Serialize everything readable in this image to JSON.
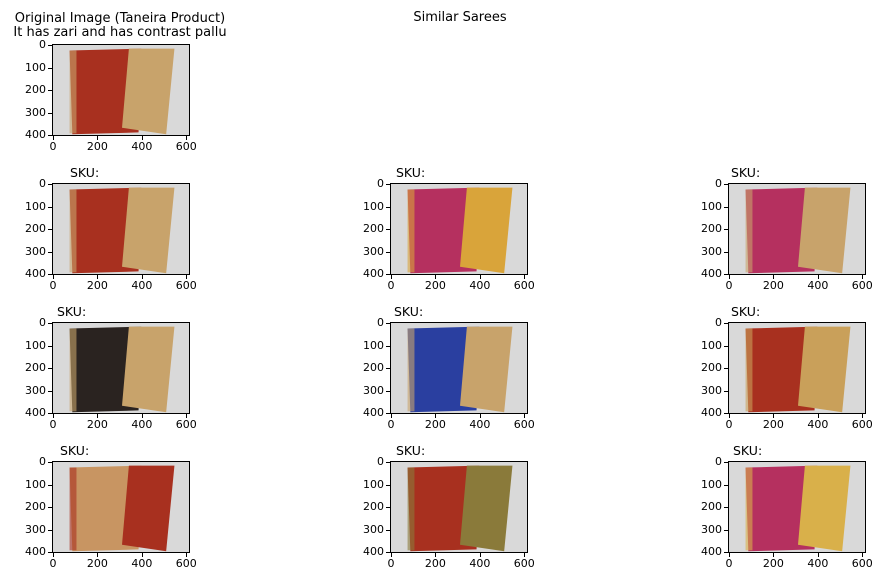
{
  "header": {
    "original_title_line1": "Original Image (Taneira Product)",
    "original_title_line2": "It has zari and has contrast pallu",
    "center_title": "Similar Sarees"
  },
  "axes": {
    "yticks": [
      "0",
      "100",
      "200",
      "300",
      "400"
    ],
    "xticks": [
      "0",
      "200",
      "400",
      "600"
    ]
  },
  "similar": {
    "sku_prefix": "SKU:"
  },
  "colors": {
    "background": "#ffffff",
    "photo_bg": "#d9d9d9",
    "saree_red": "#a8301f",
    "saree_gold": "#c8a36b",
    "saree_pink": "#b5305f",
    "saree_blue": "#2a3fa0",
    "saree_black": "#2a2320"
  }
}
